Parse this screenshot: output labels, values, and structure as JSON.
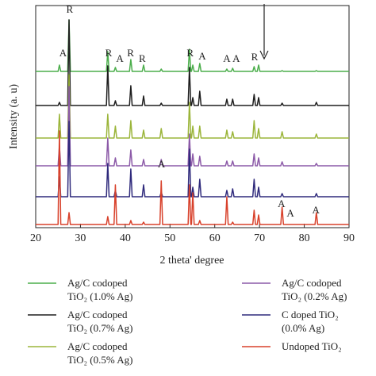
{
  "chart_data": {
    "type": "line",
    "x_label": "2 theta' degree",
    "y_label": "Intensity (a. u)",
    "xlim": [
      20,
      90
    ],
    "xticks": [
      20,
      30,
      40,
      50,
      60,
      70,
      80,
      90
    ],
    "ylim": [
      0,
      280
    ],
    "x": [
      20,
      25.0,
      25.3,
      25.6,
      27.15,
      27.45,
      27.75,
      35.8,
      36.1,
      36.4,
      37.5,
      37.8,
      38.1,
      40.95,
      41.25,
      41.55,
      43.8,
      44.1,
      44.4,
      47.75,
      48.05,
      48.35,
      54.05,
      54.35,
      54.65,
      54.8,
      55.1,
      55.4,
      56.35,
      56.65,
      56.95,
      62.4,
      62.7,
      63.0,
      63.7,
      64.0,
      64.3,
      68.5,
      68.8,
      69.1,
      69.5,
      69.8,
      70.1,
      74.75,
      75.05,
      75.35,
      82.4,
      82.7,
      83.0,
      90
    ],
    "series": [
      {
        "name": "Ag/C codoped TiO₂ (1.0% Ag)",
        "color": "#4cae4c",
        "values": [
          197,
          197,
          205,
          197,
          197,
          262,
          197,
          197,
          222,
          197,
          197,
          202,
          197,
          197,
          212,
          197,
          197,
          205,
          197,
          197,
          200,
          197,
          197,
          225,
          197,
          197,
          205,
          197,
          197,
          207,
          197,
          197,
          200,
          197,
          197,
          201,
          197,
          197,
          203,
          197,
          197,
          205,
          197,
          197,
          198,
          197,
          197,
          198,
          197,
          197
        ]
      },
      {
        "name": "Ag/C codoped TiO₂ (0.7% Ag)",
        "color": "#1e1e1e",
        "values": [
          154,
          154,
          158,
          154,
          154,
          262,
          154,
          154,
          204,
          154,
          154,
          160,
          154,
          154,
          179,
          154,
          154,
          166,
          154,
          154,
          157,
          154,
          154,
          202,
          154,
          154,
          164,
          154,
          154,
          172,
          154,
          154,
          162,
          154,
          154,
          162,
          154,
          154,
          168,
          154,
          154,
          164,
          154,
          154,
          157,
          154,
          154,
          158,
          154,
          154
        ]
      },
      {
        "name": "Ag/C codoped TiO₂ (0.5% Ag)",
        "color": "#9bb53a",
        "values": [
          113,
          113,
          143,
          113,
          113,
          193,
          113,
          113,
          143,
          113,
          113,
          128,
          113,
          113,
          135,
          113,
          113,
          123,
          113,
          113,
          125,
          113,
          113,
          158,
          113,
          113,
          128,
          113,
          113,
          128,
          113,
          113,
          123,
          113,
          113,
          121,
          113,
          113,
          135,
          113,
          113,
          125,
          113,
          113,
          121,
          113,
          113,
          118,
          113,
          113
        ]
      },
      {
        "name": "Ag/C codoped TiO₂ (0.2% Ag)",
        "color": "#8c5aa8",
        "values": [
          78,
          78,
          103,
          78,
          78,
          178,
          78,
          78,
          113,
          78,
          78,
          88,
          78,
          78,
          98,
          78,
          78,
          86,
          78,
          78,
          86,
          78,
          78,
          118,
          78,
          78,
          93,
          78,
          78,
          90,
          78,
          78,
          84,
          78,
          78,
          84,
          78,
          78,
          93,
          78,
          78,
          88,
          78,
          78,
          83,
          78,
          78,
          81,
          78,
          78
        ]
      },
      {
        "name": "C doped TiO₂ (0.0% Ag)",
        "color": "#2f2a7c",
        "values": [
          39,
          39,
          64,
          39,
          39,
          134,
          39,
          39,
          81,
          39,
          39,
          47,
          39,
          39,
          74,
          39,
          39,
          54,
          39,
          39,
          45,
          39,
          39,
          99,
          39,
          39,
          51,
          39,
          39,
          61,
          39,
          39,
          47,
          39,
          39,
          49,
          39,
          39,
          61,
          39,
          39,
          51,
          39,
          39,
          43,
          39,
          39,
          43,
          39,
          39
        ]
      },
      {
        "name": "Undoped TiO₂",
        "color": "#d8412b",
        "values": [
          4,
          4,
          122,
          4,
          4,
          19,
          4,
          4,
          14,
          4,
          4,
          54,
          4,
          4,
          9,
          4,
          4,
          7,
          4,
          4,
          59,
          4,
          4,
          54,
          4,
          4,
          44,
          4,
          4,
          9,
          4,
          4,
          39,
          4,
          4,
          7,
          4,
          4,
          22,
          4,
          4,
          16,
          4,
          4,
          26,
          4,
          4,
          19,
          4,
          4
        ]
      }
    ],
    "annotations": [
      {
        "text": "A",
        "x": 26.1,
        "y": 219
      },
      {
        "text": "R",
        "x": 27.6,
        "y": 274
      },
      {
        "text": "R",
        "x": 36.3,
        "y": 219
      },
      {
        "text": "A",
        "x": 38.8,
        "y": 212
      },
      {
        "text": "R",
        "x": 41.2,
        "y": 219
      },
      {
        "text": "R",
        "x": 43.8,
        "y": 212
      },
      {
        "text": "R",
        "x": 54.5,
        "y": 219
      },
      {
        "text": "A",
        "x": 57.2,
        "y": 215
      },
      {
        "text": "A",
        "x": 62.7,
        "y": 212
      },
      {
        "text": "A",
        "x": 64.8,
        "y": 212
      },
      {
        "text": "R",
        "x": 68.9,
        "y": 214
      },
      {
        "text": "A",
        "x": 48.1,
        "y": 79
      },
      {
        "text": "A",
        "x": 74.9,
        "y": 29
      },
      {
        "text": "A",
        "x": 76.9,
        "y": 17
      },
      {
        "text": "A",
        "x": 82.6,
        "y": 21
      }
    ]
  }
}
